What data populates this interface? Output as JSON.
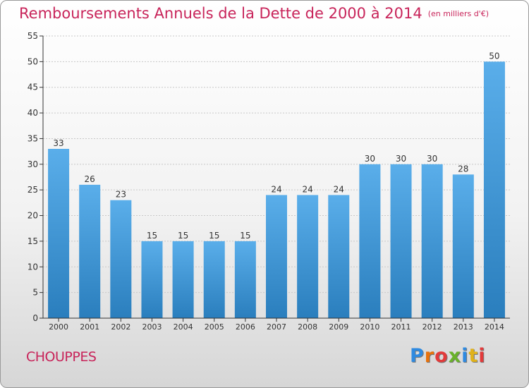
{
  "header": {
    "title": "Remboursements Annuels de la Dette de 2000 à 2014",
    "subtitle": "(en milliers d'€)"
  },
  "commune": "CHOUPPES",
  "brand": {
    "letters": [
      "P",
      "r",
      "o",
      "x",
      "i",
      "t",
      "i"
    ],
    "letter_colors": [
      "#2f8ae0",
      "#e8720c",
      "#e23a3a",
      "#69b22a",
      "#2f8ae0",
      "#e0b21a",
      "#e23a3a"
    ]
  },
  "colors": {
    "bar_light": "#5aaeea",
    "bar_dark": "#2a7ebd",
    "axis": "#333333",
    "grid": "#c8c8c8",
    "text": "#333333"
  },
  "chart_data": {
    "type": "bar",
    "title": "Remboursements Annuels de la Dette de 2000 à 2014",
    "subtitle": "(en milliers d'€)",
    "xlabel": "",
    "ylabel": "",
    "categories": [
      "2000",
      "2001",
      "2002",
      "2003",
      "2004",
      "2005",
      "2006",
      "2007",
      "2008",
      "2009",
      "2010",
      "2011",
      "2012",
      "2013",
      "2014"
    ],
    "values": [
      33,
      26,
      23,
      15,
      15,
      15,
      15,
      24,
      24,
      24,
      30,
      30,
      30,
      28,
      50
    ],
    "ylim": [
      0,
      55
    ],
    "yticks": [
      0,
      5,
      10,
      15,
      20,
      25,
      30,
      35,
      40,
      45,
      50,
      55
    ],
    "grid": true,
    "data_labels": true
  }
}
